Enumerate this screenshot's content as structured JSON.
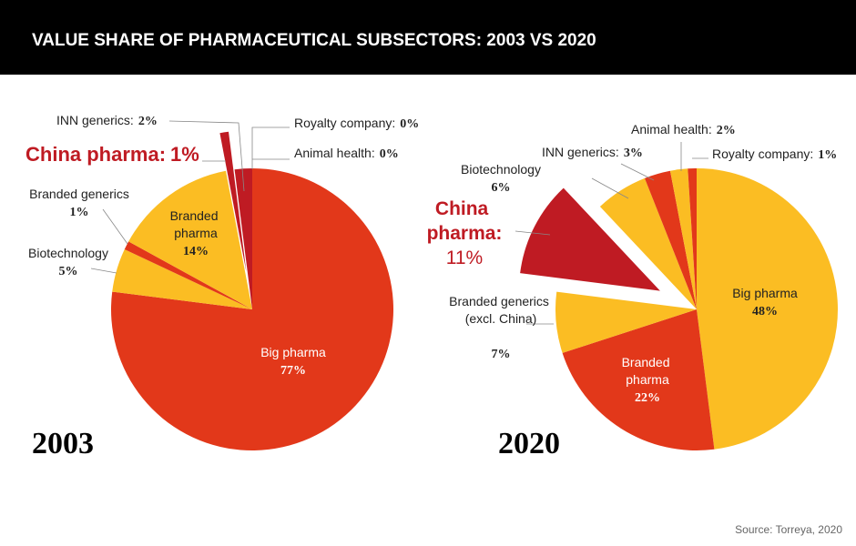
{
  "title": "VALUE SHARE OF PHARMACEUTICAL SUBSECTORS: 2003 VS 2020",
  "source": "Source: Torreya, 2020",
  "chart_data": [
    {
      "type": "pie",
      "title": "2003",
      "categories": [
        "Big pharma",
        "Biotechnology",
        "Branded generics",
        "Branded pharma",
        "China pharma:",
        "INN generics:",
        "Royalty company:",
        "Animal health:"
      ],
      "values": [
        77,
        5,
        1,
        14,
        1,
        2,
        0,
        0
      ],
      "value_labels": [
        "77%",
        "5%",
        "1%",
        "14%",
        "1%",
        "2%",
        "0%",
        "0%"
      ],
      "colors": [
        "#e2381a",
        "#fbbd23",
        "#e2381a",
        "#fbbd23",
        "#bf1b23",
        "#bf1b23",
        "#e2381a",
        "#fbbd23"
      ]
    },
    {
      "type": "pie",
      "title": "2020",
      "categories": [
        "Big pharma",
        "Branded pharma",
        "Branded generics (excl. China)",
        "China pharma:",
        "Biotechnology",
        "INN generics:",
        "Animal health:",
        "Royalty company:"
      ],
      "values": [
        48,
        22,
        7,
        11,
        6,
        3,
        2,
        1
      ],
      "value_labels": [
        "48%",
        "22%",
        "7%",
        "11%",
        "6%",
        "3%",
        "2%",
        "1%"
      ],
      "colors": [
        "#fbbd23",
        "#e2381a",
        "#fbbd23",
        "#bf1b23",
        "#fbbd23",
        "#e2381a",
        "#fbbd23",
        "#e2381a"
      ]
    }
  ]
}
